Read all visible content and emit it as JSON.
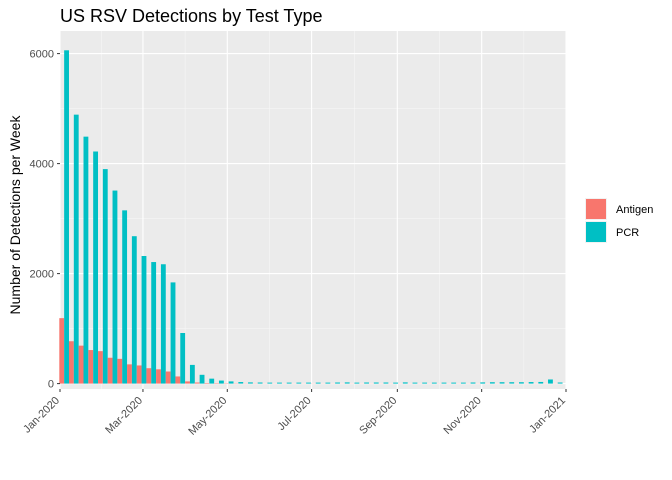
{
  "chart_data": {
    "type": "bar",
    "title": "US RSV Detections by Test Type",
    "xlabel": "",
    "ylabel": "Number of Detections per Week",
    "xlim": [
      "2020-01-01",
      "2021-01-01"
    ],
    "ylim": [
      0,
      6400
    ],
    "y_ticks": [
      0,
      2000,
      4000,
      6000
    ],
    "x_ticks": [
      {
        "date": "2020-01-01",
        "label": "Jan-2020"
      },
      {
        "date": "2020-03-01",
        "label": "Mar-2020"
      },
      {
        "date": "2020-05-01",
        "label": "May-2020"
      },
      {
        "date": "2020-07-01",
        "label": "Jul-2020"
      },
      {
        "date": "2020-09-01",
        "label": "Sep-2020"
      },
      {
        "date": "2020-11-01",
        "label": "Nov-2020"
      },
      {
        "date": "2021-01-01",
        "label": "Jan-2021"
      }
    ],
    "grid": true,
    "legend_position": "right",
    "x": [
      "2020-01-04",
      "2020-01-11",
      "2020-01-18",
      "2020-01-25",
      "2020-02-01",
      "2020-02-08",
      "2020-02-15",
      "2020-02-22",
      "2020-02-29",
      "2020-03-07",
      "2020-03-14",
      "2020-03-21",
      "2020-03-28",
      "2020-04-04",
      "2020-04-11",
      "2020-04-18",
      "2020-04-25",
      "2020-05-02",
      "2020-05-09",
      "2020-05-16",
      "2020-05-23",
      "2020-05-30",
      "2020-06-06",
      "2020-06-13",
      "2020-06-20",
      "2020-06-27",
      "2020-07-04",
      "2020-07-11",
      "2020-07-18",
      "2020-07-25",
      "2020-08-01",
      "2020-08-08",
      "2020-08-15",
      "2020-08-22",
      "2020-08-29",
      "2020-09-05",
      "2020-09-12",
      "2020-09-19",
      "2020-09-26",
      "2020-10-03",
      "2020-10-10",
      "2020-10-17",
      "2020-10-24",
      "2020-10-31",
      "2020-11-07",
      "2020-11-14",
      "2020-11-21",
      "2020-11-28",
      "2020-12-05",
      "2020-12-12",
      "2020-12-19",
      "2020-12-26"
    ],
    "series": [
      {
        "name": "Antigen",
        "color": "#F8766D",
        "values": [
          1190,
          770,
          690,
          610,
          590,
          470,
          450,
          350,
          330,
          280,
          260,
          220,
          130,
          40,
          20,
          10,
          8,
          6,
          5,
          4,
          4,
          3,
          3,
          3,
          3,
          3,
          3,
          3,
          3,
          3,
          3,
          3,
          3,
          3,
          3,
          3,
          3,
          3,
          3,
          3,
          3,
          3,
          3,
          3,
          3,
          3,
          3,
          3,
          3,
          3,
          3,
          3
        ]
      },
      {
        "name": "PCR",
        "color": "#00BFC4",
        "values": [
          6060,
          4890,
          4490,
          4220,
          3900,
          3510,
          3150,
          2680,
          2320,
          2210,
          2170,
          1840,
          920,
          340,
          160,
          90,
          55,
          40,
          28,
          22,
          20,
          18,
          18,
          18,
          18,
          18,
          18,
          18,
          20,
          22,
          18,
          20,
          20,
          20,
          18,
          22,
          18,
          18,
          18,
          18,
          18,
          18,
          20,
          22,
          25,
          25,
          25,
          25,
          28,
          30,
          75,
          20
        ]
      }
    ]
  }
}
